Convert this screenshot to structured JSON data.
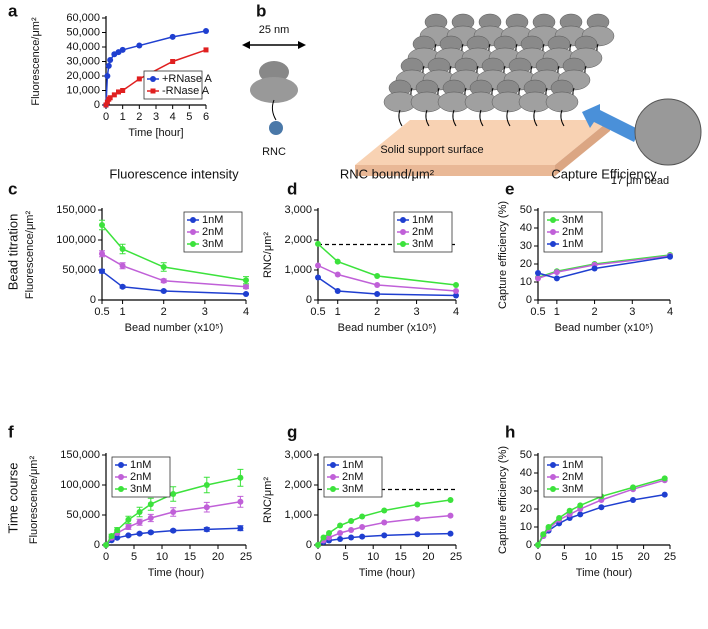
{
  "chart_data": [
    {
      "type": "line",
      "label": "a",
      "xlabel": "Time [hour]",
      "ylabel": "Fluorescence/μm²",
      "legend": "bottom-right",
      "xlim": [
        0,
        6
      ],
      "ylim": [
        0,
        60000
      ],
      "xticks": [
        0,
        1,
        2,
        3,
        4,
        5,
        6
      ],
      "yticks": [
        0,
        {
          "value": 10000,
          "label": "10,000"
        },
        {
          "value": 20000,
          "label": "20,000"
        },
        {
          "value": 30000,
          "label": "30,000"
        },
        {
          "value": 40000,
          "label": "40,000"
        },
        {
          "value": 50000,
          "label": "50,000"
        },
        {
          "value": 60000,
          "label": "60,000"
        }
      ],
      "x": [
        0,
        0.083,
        0.167,
        0.25,
        0.5,
        0.75,
        1,
        2,
        4,
        6
      ],
      "series": [
        {
          "name": "+RNase A",
          "color": "#1f3fd0",
          "marker": "circle",
          "values": [
            0,
            20000,
            27000,
            31000,
            35000,
            36500,
            38000,
            41000,
            47000,
            51000
          ]
        },
        {
          "name": "-RNase A",
          "color": "#e02020",
          "marker": "square",
          "values": [
            0,
            2000,
            4000,
            5000,
            7000,
            9000,
            10000,
            18000,
            30000,
            38000
          ]
        }
      ]
    },
    {
      "type": "line",
      "label": "c",
      "title": "Fluorescence intensity",
      "xlabel": "Bead number (x10⁵)",
      "ylabel": "Fluorescence/μm²",
      "legend": "top-right",
      "xlim": [
        0.5,
        4
      ],
      "ylim": [
        0,
        150000
      ],
      "xticks": [
        0.5,
        1,
        2,
        3,
        4
      ],
      "yticks": [
        0,
        {
          "value": 50000,
          "label": "50,000"
        },
        {
          "value": 100000,
          "label": "100,000"
        },
        {
          "value": 150000,
          "label": "150,000"
        }
      ],
      "x": [
        0.5,
        1,
        2,
        4
      ],
      "series": [
        {
          "name": "1nM",
          "color": "#1f3fd0",
          "marker": "circle",
          "values": [
            48000,
            22000,
            15000,
            10000
          ],
          "errors": [
            3000,
            2000,
            1500,
            1000
          ]
        },
        {
          "name": "2nM",
          "color": "#c060d8",
          "marker": "circle",
          "values": [
            77000,
            57000,
            32000,
            22000
          ],
          "errors": [
            5000,
            5000,
            3000,
            3000
          ]
        },
        {
          "name": "3nM",
          "color": "#3ce23c",
          "marker": "circle",
          "values": [
            125000,
            85000,
            55000,
            33000
          ],
          "errors": [
            8000,
            8000,
            7000,
            6000
          ]
        }
      ]
    },
    {
      "type": "line",
      "label": "d",
      "title": "RNC bound/μm²",
      "xlabel": "Bead number (x10⁵)",
      "ylabel": "RNC/μm²",
      "legend": "top-right",
      "reference_line": 1850,
      "xlim": [
        0.5,
        4
      ],
      "ylim": [
        0,
        3000
      ],
      "xticks": [
        0.5,
        1,
        2,
        3,
        4
      ],
      "yticks": [
        0,
        {
          "value": 1000,
          "label": "1,000"
        },
        {
          "value": 2000,
          "label": "2,000"
        },
        {
          "value": 3000,
          "label": "3,000"
        }
      ],
      "x": [
        0.5,
        1,
        2,
        4
      ],
      "series": [
        {
          "name": "1nM",
          "color": "#1f3fd0",
          "marker": "circle",
          "values": [
            750,
            300,
            200,
            150
          ]
        },
        {
          "name": "2nM",
          "color": "#c060d8",
          "marker": "circle",
          "values": [
            1150,
            850,
            500,
            300
          ]
        },
        {
          "name": "3nM",
          "color": "#3ce23c",
          "marker": "circle",
          "values": [
            1870,
            1280,
            800,
            500
          ]
        }
      ]
    },
    {
      "type": "line",
      "label": "e",
      "title": "Capture Efficiency",
      "xlabel": "Bead number (x10⁵)",
      "ylabel": "Capture efficiency (%)",
      "legend": "top-left",
      "xlim": [
        0.5,
        4
      ],
      "ylim": [
        0,
        50
      ],
      "xticks": [
        0.5,
        1,
        2,
        3,
        4
      ],
      "yticks": [
        0,
        10,
        20,
        30,
        40,
        50
      ],
      "x": [
        0.5,
        1,
        2,
        4
      ],
      "series": [
        {
          "name": "3nM",
          "color": "#3ce23c",
          "marker": "circle",
          "values": [
            12.5,
            16,
            20,
            25
          ]
        },
        {
          "name": "2nM",
          "color": "#c060d8",
          "marker": "circle",
          "values": [
            12,
            15.5,
            19.5,
            24.5
          ]
        },
        {
          "name": "1nM",
          "color": "#1f3fd0",
          "marker": "circle",
          "values": [
            15,
            12,
            17.5,
            24
          ]
        }
      ]
    },
    {
      "type": "line",
      "label": "f",
      "xlabel": "Time (hour)",
      "ylabel": "Fluorescence/μm²",
      "legend": "top-left",
      "xlim": [
        0,
        25
      ],
      "ylim": [
        0,
        150000
      ],
      "xticks": [
        0,
        5,
        10,
        15,
        20,
        25
      ],
      "yticks": [
        0,
        {
          "value": 50000,
          "label": "50,000"
        },
        {
          "value": 100000,
          "label": "100,000"
        },
        {
          "value": 150000,
          "label": "150,000"
        }
      ],
      "x": [
        0,
        1,
        2,
        4,
        6,
        8,
        12,
        18,
        24
      ],
      "series": [
        {
          "name": "1nM",
          "color": "#1f3fd0",
          "marker": "circle",
          "values": [
            0,
            8000,
            12000,
            16000,
            19000,
            21000,
            24000,
            26000,
            28000
          ],
          "errors": [
            0,
            1000,
            1000,
            1500,
            1500,
            2000,
            2000,
            3000,
            4000
          ]
        },
        {
          "name": "2nM",
          "color": "#c060d8",
          "marker": "circle",
          "values": [
            0,
            12000,
            20000,
            30000,
            38000,
            45000,
            55000,
            63000,
            72000
          ],
          "errors": [
            0,
            2000,
            3000,
            4000,
            5000,
            6000,
            7000,
            8000,
            9000
          ]
        },
        {
          "name": "3nM",
          "color": "#3ce23c",
          "marker": "circle",
          "values": [
            0,
            15000,
            25000,
            42000,
            55000,
            68000,
            85000,
            100000,
            112000
          ],
          "errors": [
            0,
            3000,
            4000,
            6000,
            8000,
            10000,
            12000,
            13000,
            14000
          ]
        }
      ]
    },
    {
      "type": "line",
      "label": "g",
      "xlabel": "Time (hour)",
      "ylabel": "RNC/μm²",
      "legend": "top-left",
      "reference_line": 1850,
      "xlim": [
        0,
        25
      ],
      "ylim": [
        0,
        3000
      ],
      "xticks": [
        0,
        5,
        10,
        15,
        20,
        25
      ],
      "yticks": [
        0,
        {
          "value": 1000,
          "label": "1,000"
        },
        {
          "value": 2000,
          "label": "2,000"
        },
        {
          "value": 3000,
          "label": "3,000"
        }
      ],
      "x": [
        0,
        1,
        2,
        4,
        6,
        8,
        12,
        18,
        24
      ],
      "series": [
        {
          "name": "1nM",
          "color": "#1f3fd0",
          "marker": "circle",
          "values": [
            0,
            100,
            150,
            200,
            250,
            280,
            320,
            360,
            380
          ]
        },
        {
          "name": "2nM",
          "color": "#c060d8",
          "marker": "circle",
          "values": [
            0,
            150,
            250,
            400,
            500,
            600,
            750,
            880,
            980
          ]
        },
        {
          "name": "3nM",
          "color": "#3ce23c",
          "marker": "circle",
          "values": [
            0,
            250,
            400,
            650,
            800,
            950,
            1150,
            1350,
            1500
          ]
        }
      ]
    },
    {
      "type": "line",
      "label": "h",
      "xlabel": "Time (hour)",
      "ylabel": "Capture efficiency (%)",
      "legend": "top-left",
      "xlim": [
        0,
        25
      ],
      "ylim": [
        0,
        50
      ],
      "xticks": [
        0,
        5,
        10,
        15,
        20,
        25
      ],
      "yticks": [
        0,
        10,
        20,
        30,
        40,
        50
      ],
      "x": [
        0,
        1,
        2,
        4,
        6,
        8,
        12,
        18,
        24
      ],
      "series": [
        {
          "name": "1nM",
          "color": "#1f3fd0",
          "marker": "circle",
          "values": [
            0,
            5,
            8,
            12,
            15,
            17,
            21,
            25,
            28
          ]
        },
        {
          "name": "2nM",
          "color": "#c060d8",
          "marker": "circle",
          "values": [
            0,
            5,
            9,
            14,
            17,
            20,
            25,
            31,
            36
          ]
        },
        {
          "name": "3nM",
          "color": "#3ce23c",
          "marker": "circle",
          "values": [
            0,
            6,
            10,
            15,
            19,
            22,
            27,
            32,
            37
          ]
        }
      ]
    }
  ],
  "diagram": {
    "label": "b",
    "scale": "25 nm",
    "rnc": "RNC",
    "surface": "Solid support surface",
    "bead": "17 μm bead"
  },
  "row_labels": [
    "Bead titration",
    "Time course"
  ]
}
